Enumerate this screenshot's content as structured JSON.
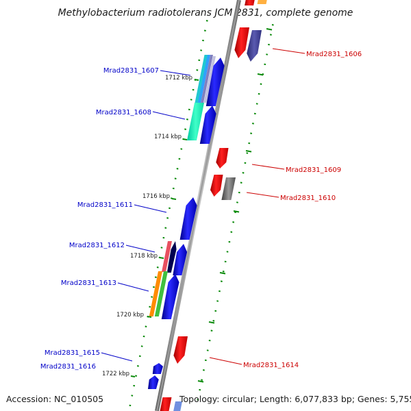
{
  "title": "Methylobacterium radiotolerans JCM 2831, complete genome",
  "footer": {
    "accession": "Accession: NC_010505",
    "topology": "Topology: circular; Length: 6,077,833 bp; Genes: 5,755"
  },
  "kbp_ticks": [
    {
      "text": "1712 kbp"
    },
    {
      "text": "1714 kbp"
    },
    {
      "text": "1716 kbp"
    },
    {
      "text": "1718 kbp"
    },
    {
      "text": "1720 kbp"
    },
    {
      "text": "1722 kbp"
    }
  ],
  "genes_left": [
    {
      "name": "Mrad2831_1607"
    },
    {
      "name": "Mrad2831_1608"
    },
    {
      "name": "Mrad2831_1611"
    },
    {
      "name": "Mrad2831_1612"
    },
    {
      "name": "Mrad2831_1613"
    },
    {
      "name": "Mrad2831_1615"
    },
    {
      "name": "Mrad2831_1616"
    }
  ],
  "genes_right": [
    {
      "name": "Mrad2831_1606"
    },
    {
      "name": "Mrad2831_1609"
    },
    {
      "name": "Mrad2831_1610"
    },
    {
      "name": "Mrad2831_1614"
    }
  ],
  "colors": {
    "left_label": "#0000c8",
    "right_label": "#cc0000",
    "backbone": "#8c8c8c",
    "tick": "#0a8a0a"
  }
}
